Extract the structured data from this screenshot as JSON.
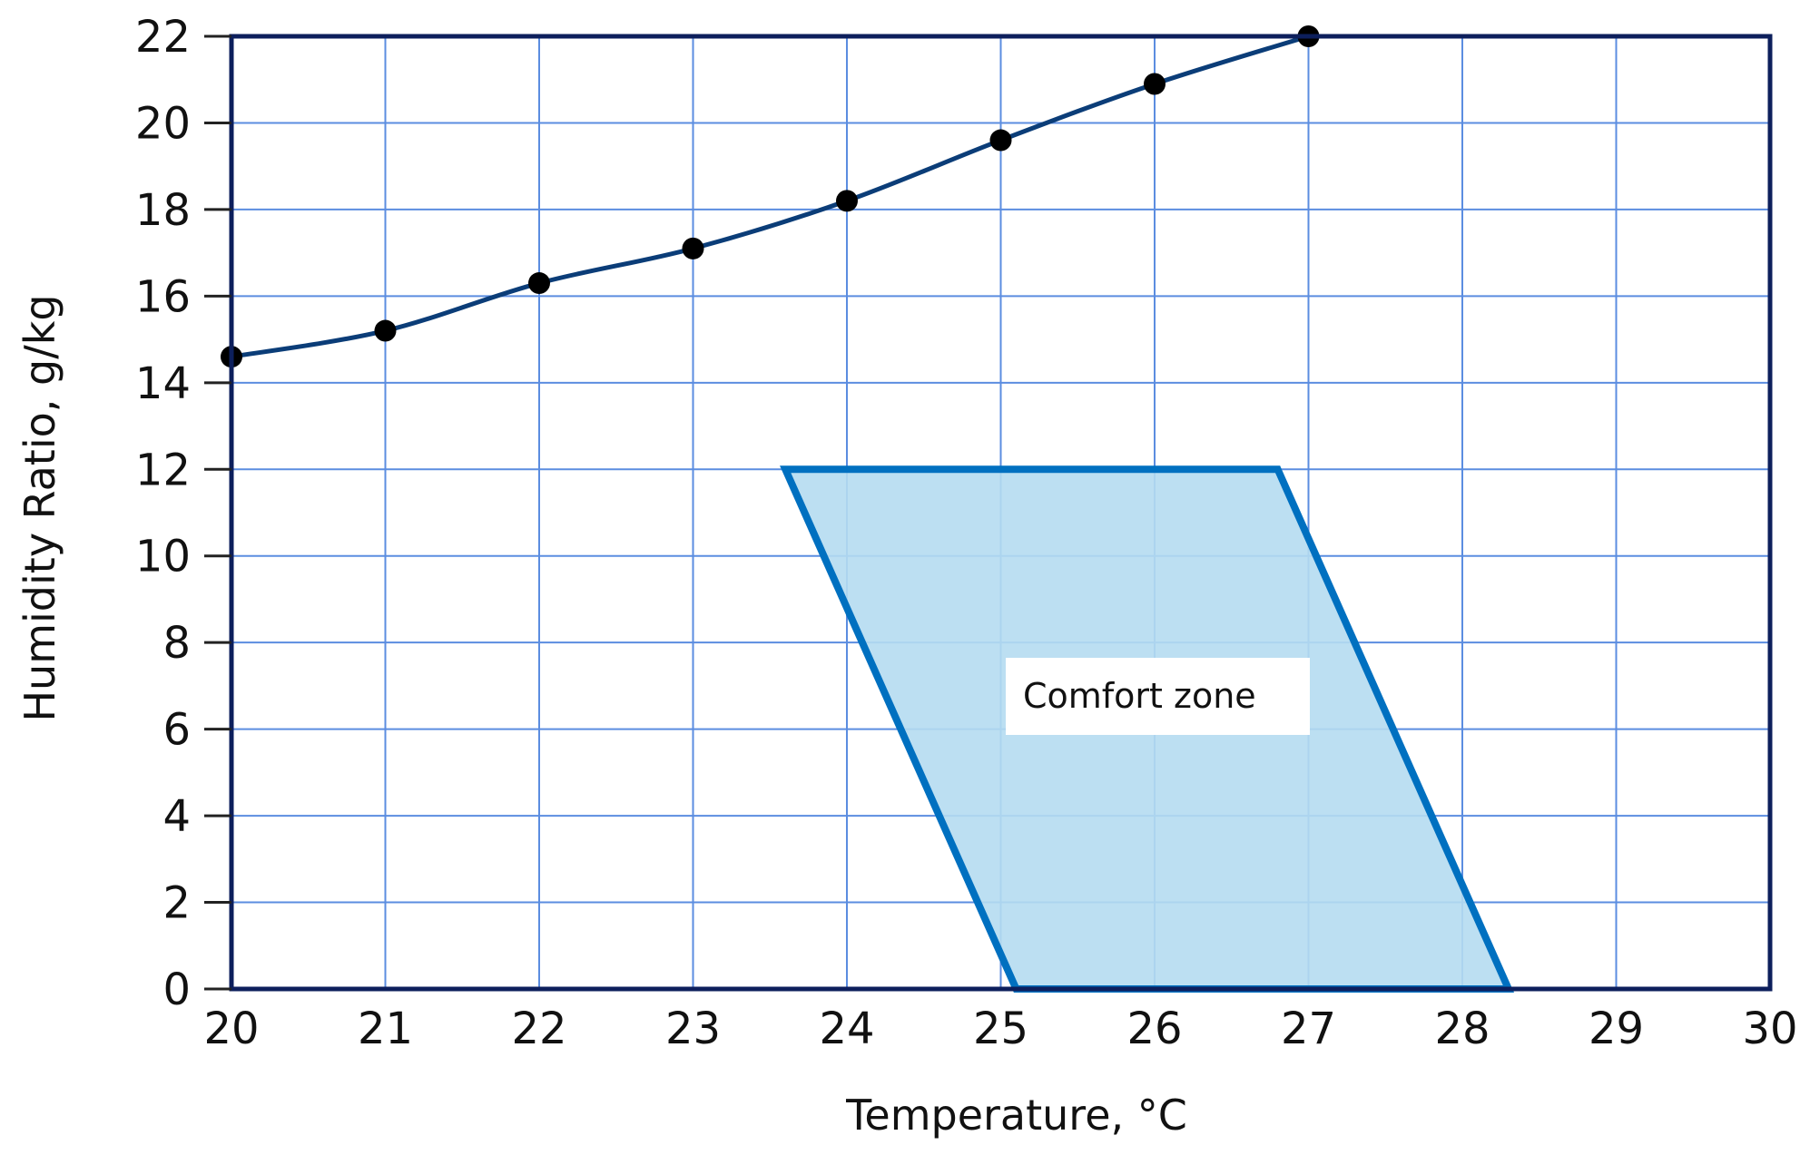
{
  "chart_data": {
    "type": "line",
    "title": "",
    "xlabel": "Temperature, °C",
    "ylabel": "Humidity Ratio, g/kg",
    "xlim": [
      20,
      30
    ],
    "ylim": [
      0,
      22
    ],
    "x_ticks": [
      20,
      21,
      22,
      23,
      24,
      25,
      26,
      27,
      28,
      29,
      30
    ],
    "y_ticks": [
      0,
      2,
      4,
      6,
      8,
      10,
      12,
      14,
      16,
      18,
      20,
      22
    ],
    "grid": true,
    "series": [
      {
        "x": [
          20.0,
          21.0,
          22.0,
          23.0,
          24.0,
          25.0,
          26.0,
          27.0
        ],
        "y": [
          14.6,
          15.2,
          16.3,
          17.1,
          18.2,
          19.6,
          20.9,
          22.0
        ],
        "marker": "circle",
        "color": "#0b3d78"
      }
    ],
    "region": {
      "label": "Comfort zone",
      "vertices": [
        [
          23.6,
          12.0
        ],
        [
          26.8,
          12.0
        ],
        [
          28.3,
          0.0
        ],
        [
          25.1,
          0.0
        ]
      ],
      "fill_color": "#b5dcf1",
      "edge_color": "#0070c0"
    },
    "colors": {
      "frame": "#0d1f5c",
      "grid": "#5b8de0",
      "curve": "#0b3d78",
      "marker": "#000000"
    }
  }
}
